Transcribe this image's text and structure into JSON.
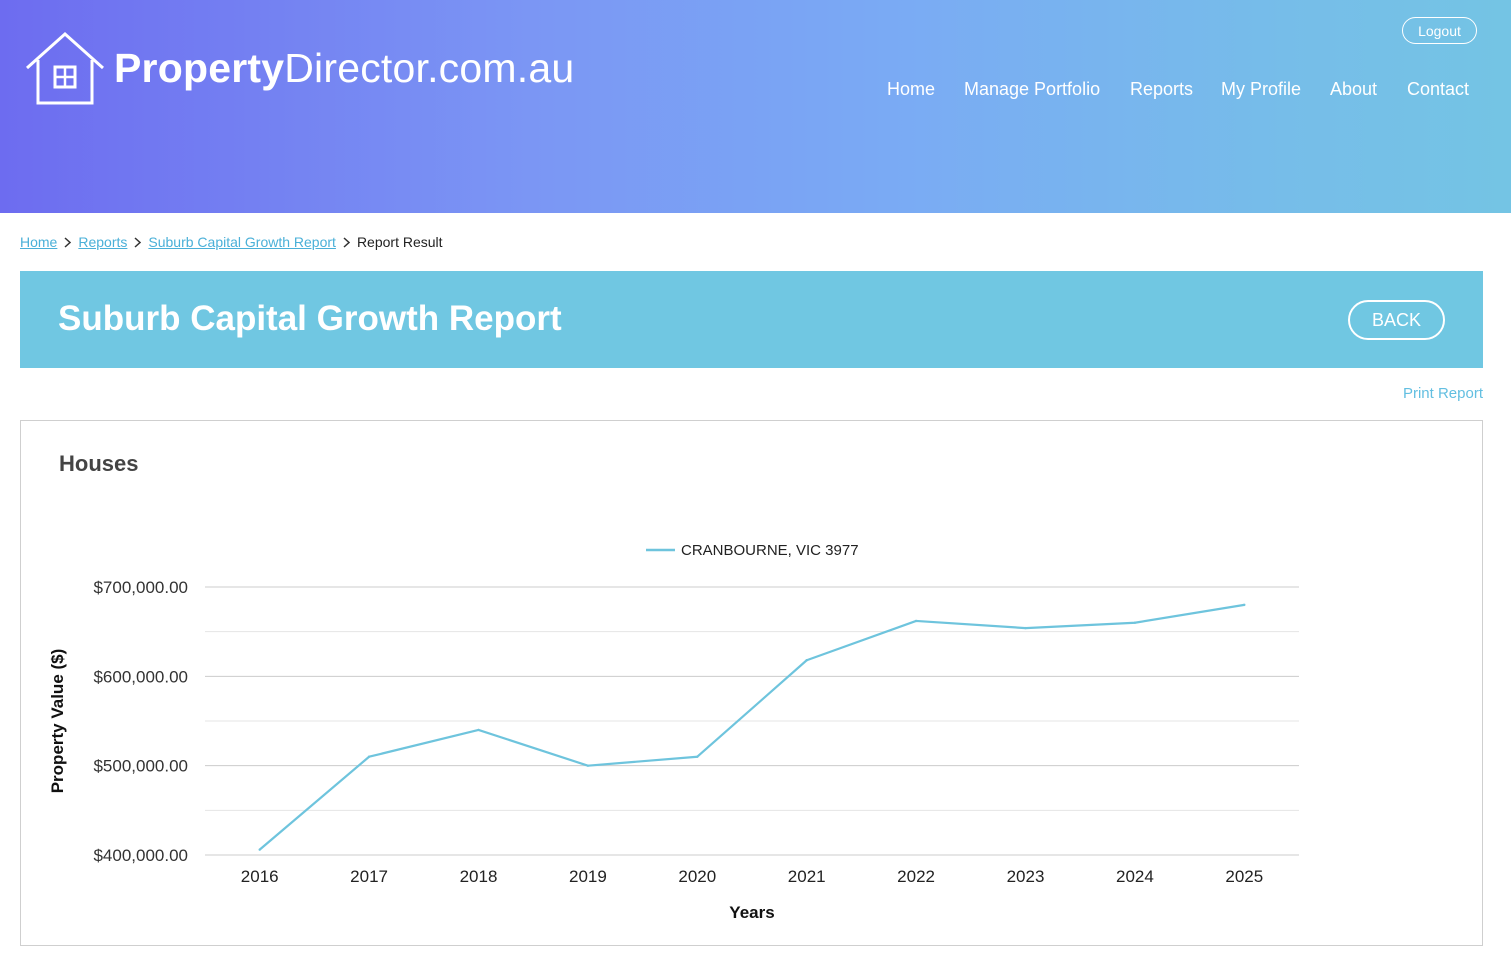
{
  "brand": {
    "name_bold": "Property",
    "name_rest": "Director.com.au"
  },
  "header": {
    "logout_label": "Logout",
    "nav": [
      "Home",
      "Manage Portfolio",
      "Reports",
      "My Profile",
      "About",
      "Contact"
    ]
  },
  "breadcrumb": {
    "links": [
      "Home",
      "Reports",
      "Suburb Capital Growth Report"
    ],
    "current": "Report Result"
  },
  "banner": {
    "title": "Suburb Capital Growth Report",
    "back_label": "BACK"
  },
  "print_label": "Print Report",
  "chart_heading": "Houses",
  "colors": {
    "accent": "#70c7e2",
    "link": "#4ab0d8",
    "line": "#6ec4dd"
  },
  "chart_data": {
    "type": "line",
    "title": "Houses",
    "x": [
      "2016",
      "2017",
      "2018",
      "2019",
      "2020",
      "2021",
      "2022",
      "2023",
      "2024",
      "2025"
    ],
    "series": [
      {
        "name": "CRANBOURNE, VIC 3977",
        "values": [
          406000,
          510000,
          540000,
          500000,
          510000,
          618000,
          662000,
          654000,
          660000,
          680000
        ]
      }
    ],
    "xlabel": "Years",
    "ylabel": "Property Value ($)",
    "ylim": [
      400000,
      700000
    ],
    "yticks": [
      "$400,000.00",
      "$500,000.00",
      "$600,000.00",
      "$700,000.00"
    ],
    "grid": true,
    "legend": "top-center"
  }
}
